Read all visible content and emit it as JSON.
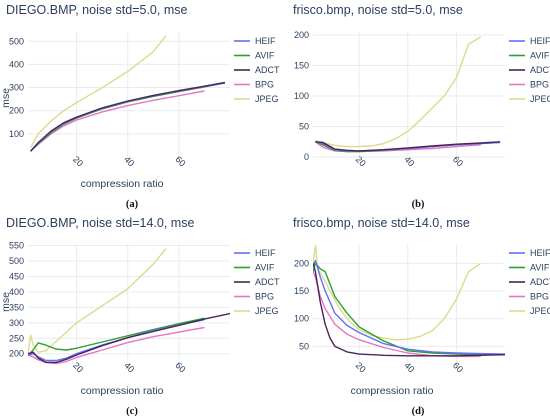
{
  "colors": {
    "grid": "#e8ebf0",
    "axis_bg": "#ffffff",
    "HEIF": "#636efa",
    "AVIF": "#2ca02c",
    "ADCT": "#4a235a",
    "BPG": "#e377c2",
    "JPEG": "#dbdb8d"
  },
  "chart_data": [
    {
      "type": "line",
      "panel": "a",
      "title": "DIEGO.BMP, noise std=5.0, mse",
      "caption": "(a)",
      "xlabel": "compression ratio",
      "ylabel": "mse",
      "xlim": [
        1,
        80
      ],
      "ylim": [
        0,
        540
      ],
      "xticks": [
        20,
        40,
        60
      ],
      "yticks": [
        100,
        200,
        300,
        400,
        500
      ],
      "tick_rotation": 45,
      "legend_position": "right",
      "grid": true,
      "series": [
        {
          "name": "HEIF",
          "x": [
            2,
            5,
            10,
            15,
            20,
            30,
            40,
            50,
            60,
            70,
            78
          ],
          "y": [
            25,
            60,
            110,
            145,
            170,
            210,
            240,
            265,
            285,
            305,
            320
          ]
        },
        {
          "name": "AVIF",
          "x": [
            2,
            5,
            10,
            15,
            20,
            30,
            40,
            50,
            60,
            70,
            78
          ],
          "y": [
            25,
            58,
            105,
            142,
            168,
            208,
            238,
            262,
            283,
            303,
            320
          ]
        },
        {
          "name": "ADCT",
          "x": [
            2,
            5,
            10,
            15,
            20,
            30,
            40,
            50,
            60,
            70,
            78
          ],
          "y": [
            25,
            62,
            112,
            148,
            172,
            212,
            242,
            266,
            287,
            306,
            322
          ]
        },
        {
          "name": "BPG",
          "x": [
            2,
            5,
            10,
            15,
            20,
            30,
            40,
            50,
            60,
            70
          ],
          "y": [
            25,
            55,
            100,
            135,
            160,
            195,
            222,
            245,
            265,
            285
          ]
        },
        {
          "name": "JPEG",
          "x": [
            2,
            5,
            10,
            15,
            20,
            30,
            40,
            50,
            55
          ],
          "y": [
            40,
            100,
            155,
            200,
            235,
            300,
            370,
            455,
            525
          ]
        }
      ]
    },
    {
      "type": "line",
      "panel": "b",
      "title": "frisco.bmp, noise std=5.0, mse",
      "caption": "(b)",
      "xlabel": "",
      "ylabel": "",
      "xlim": [
        1,
        80
      ],
      "ylim": [
        0,
        205
      ],
      "xticks": [
        20,
        40,
        60
      ],
      "yticks": [
        0,
        50,
        100,
        150,
        200
      ],
      "tick_rotation": 45,
      "legend_position": "right",
      "grid": true,
      "series": [
        {
          "name": "HEIF",
          "x": [
            2,
            5,
            10,
            15,
            20,
            30,
            40,
            50,
            60,
            70,
            78
          ],
          "y": [
            25,
            22,
            12,
            10,
            10,
            12,
            14,
            17,
            20,
            22,
            24
          ]
        },
        {
          "name": "AVIF",
          "x": [
            2,
            5,
            10,
            15,
            20,
            30,
            40,
            50,
            60,
            70,
            78
          ],
          "y": [
            25,
            20,
            11,
            9,
            9,
            11,
            14,
            17,
            20,
            22,
            24
          ]
        },
        {
          "name": "ADCT",
          "x": [
            2,
            5,
            10,
            15,
            20,
            30,
            40,
            50,
            60,
            70,
            78
          ],
          "y": [
            25,
            24,
            13,
            11,
            10,
            12,
            15,
            18,
            21,
            23,
            25
          ]
        },
        {
          "name": "BPG",
          "x": [
            2,
            5,
            10,
            15,
            20,
            30,
            40,
            50,
            60,
            70
          ],
          "y": [
            25,
            16,
            10,
            9,
            9,
            10,
            12,
            14,
            17,
            20
          ]
        },
        {
          "name": "JPEG",
          "x": [
            2,
            5,
            10,
            15,
            20,
            25,
            30,
            35,
            40,
            45,
            50,
            55,
            60,
            65,
            70
          ],
          "y": [
            27,
            24,
            19,
            17,
            17,
            18,
            22,
            30,
            42,
            60,
            80,
            100,
            130,
            185,
            197
          ]
        }
      ]
    },
    {
      "type": "line",
      "panel": "c",
      "title": "DIEGO.BMP, noise std=14.0, mse",
      "caption": "(c)",
      "xlabel": "compression ratio",
      "ylabel": "mse",
      "xlim": [
        1,
        80
      ],
      "ylim": [
        170,
        555
      ],
      "xticks": [
        20,
        40,
        60
      ],
      "yticks": [
        200,
        250,
        300,
        350,
        400,
        450,
        500,
        550
      ],
      "tick_rotation": 45,
      "legend_position": "right",
      "grid": true,
      "series": [
        {
          "name": "HEIF",
          "x": [
            1,
            3,
            5,
            8,
            12,
            16,
            20,
            30,
            40,
            50,
            60,
            70
          ],
          "y": [
            195,
            200,
            190,
            178,
            178,
            186,
            200,
            228,
            252,
            275,
            293,
            310
          ]
        },
        {
          "name": "AVIF",
          "x": [
            1,
            3,
            5,
            8,
            12,
            16,
            20,
            30,
            40,
            50,
            60,
            70
          ],
          "y": [
            195,
            212,
            235,
            228,
            215,
            212,
            218,
            238,
            258,
            278,
            297,
            315
          ]
        },
        {
          "name": "ADCT",
          "x": [
            1,
            3,
            5,
            8,
            12,
            16,
            20,
            30,
            40,
            50,
            60,
            70,
            80
          ],
          "y": [
            200,
            205,
            186,
            172,
            172,
            182,
            196,
            226,
            252,
            272,
            292,
            312,
            330
          ]
        },
        {
          "name": "BPG",
          "x": [
            1,
            3,
            5,
            8,
            12,
            16,
            20,
            30,
            40,
            50,
            60,
            70
          ],
          "y": [
            195,
            190,
            180,
            172,
            168,
            175,
            188,
            212,
            236,
            255,
            270,
            285
          ]
        },
        {
          "name": "JPEG",
          "x": [
            1,
            2,
            3,
            5,
            8,
            12,
            16,
            20,
            30,
            40,
            50,
            55
          ],
          "y": [
            200,
            260,
            230,
            205,
            210,
            240,
            270,
            300,
            355,
            410,
            490,
            540
          ]
        }
      ]
    },
    {
      "type": "line",
      "panel": "d",
      "title": "frisco.bmp, noise std=14.0, mse",
      "caption": "(d)",
      "xlabel": "compression ratio",
      "ylabel": "",
      "xlim": [
        1,
        80
      ],
      "ylim": [
        20,
        235
      ],
      "xticks": [
        20,
        40,
        60
      ],
      "yticks": [
        50,
        100,
        150,
        200
      ],
      "tick_rotation": 45,
      "legend_position": "right",
      "grid": true,
      "series": [
        {
          "name": "HEIF",
          "x": [
            1,
            2,
            4,
            6,
            10,
            15,
            20,
            30,
            40,
            50,
            60,
            70,
            80
          ],
          "y": [
            195,
            205,
            175,
            150,
            110,
            88,
            75,
            55,
            45,
            40,
            38,
            37,
            36
          ]
        },
        {
          "name": "AVIF",
          "x": [
            1,
            2,
            4,
            6,
            10,
            15,
            20,
            30,
            40,
            50,
            60,
            70,
            80
          ],
          "y": [
            185,
            200,
            190,
            185,
            140,
            110,
            85,
            60,
            42,
            38,
            36,
            35,
            35
          ]
        },
        {
          "name": "ADCT",
          "x": [
            1,
            2,
            4,
            6,
            8,
            10,
            15,
            20,
            30,
            40,
            50,
            60,
            70,
            80
          ],
          "y": [
            200,
            185,
            130,
            90,
            65,
            50,
            40,
            36,
            34,
            33,
            33,
            33,
            34,
            35
          ]
        },
        {
          "name": "BPG",
          "x": [
            1,
            2,
            4,
            6,
            10,
            15,
            20,
            30,
            40,
            50,
            60,
            70
          ],
          "y": [
            185,
            175,
            140,
            118,
            90,
            72,
            62,
            48,
            38,
            33,
            32,
            32
          ]
        },
        {
          "name": "JPEG",
          "x": [
            1,
            2,
            3,
            5,
            8,
            12,
            16,
            20,
            25,
            30,
            35,
            40,
            45,
            50,
            55,
            60,
            65,
            70
          ],
          "y": [
            200,
            232,
            190,
            175,
            150,
            118,
            95,
            80,
            70,
            65,
            62,
            63,
            68,
            78,
            100,
            135,
            185,
            200
          ]
        }
      ]
    }
  ]
}
